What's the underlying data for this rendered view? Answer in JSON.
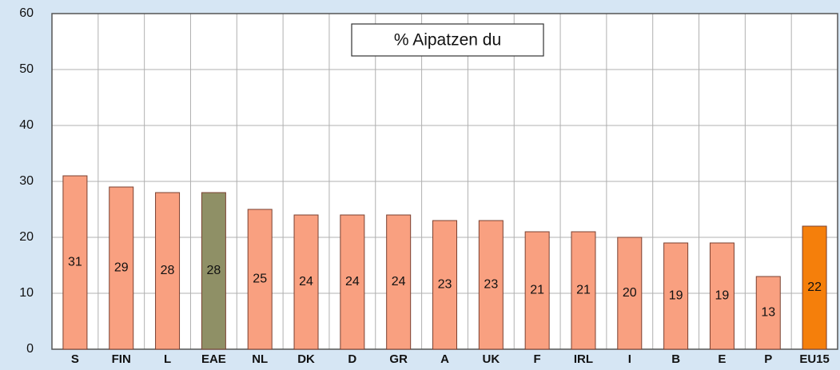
{
  "chart_data": {
    "type": "bar",
    "title": "% Aipatzen du",
    "categories": [
      "S",
      "FIN",
      "L",
      "EAE",
      "NL",
      "DK",
      "D",
      "GR",
      "A",
      "UK",
      "F",
      "IRL",
      "I",
      "B",
      "E",
      "P",
      "EU15"
    ],
    "values": [
      31,
      29,
      28,
      28,
      25,
      24,
      24,
      24,
      23,
      23,
      21,
      21,
      20,
      19,
      19,
      13,
      22
    ],
    "colors": [
      "#f9a080",
      "#f9a080",
      "#f9a080",
      "#8f9066",
      "#f9a080",
      "#f9a080",
      "#f9a080",
      "#f9a080",
      "#f9a080",
      "#f9a080",
      "#f9a080",
      "#f9a080",
      "#f9a080",
      "#f9a080",
      "#f9a080",
      "#f9a080",
      "#f57f0b"
    ],
    "ylim": [
      0,
      60
    ],
    "yticks": [
      0,
      10,
      20,
      30,
      40,
      50,
      60
    ],
    "grid": true
  }
}
